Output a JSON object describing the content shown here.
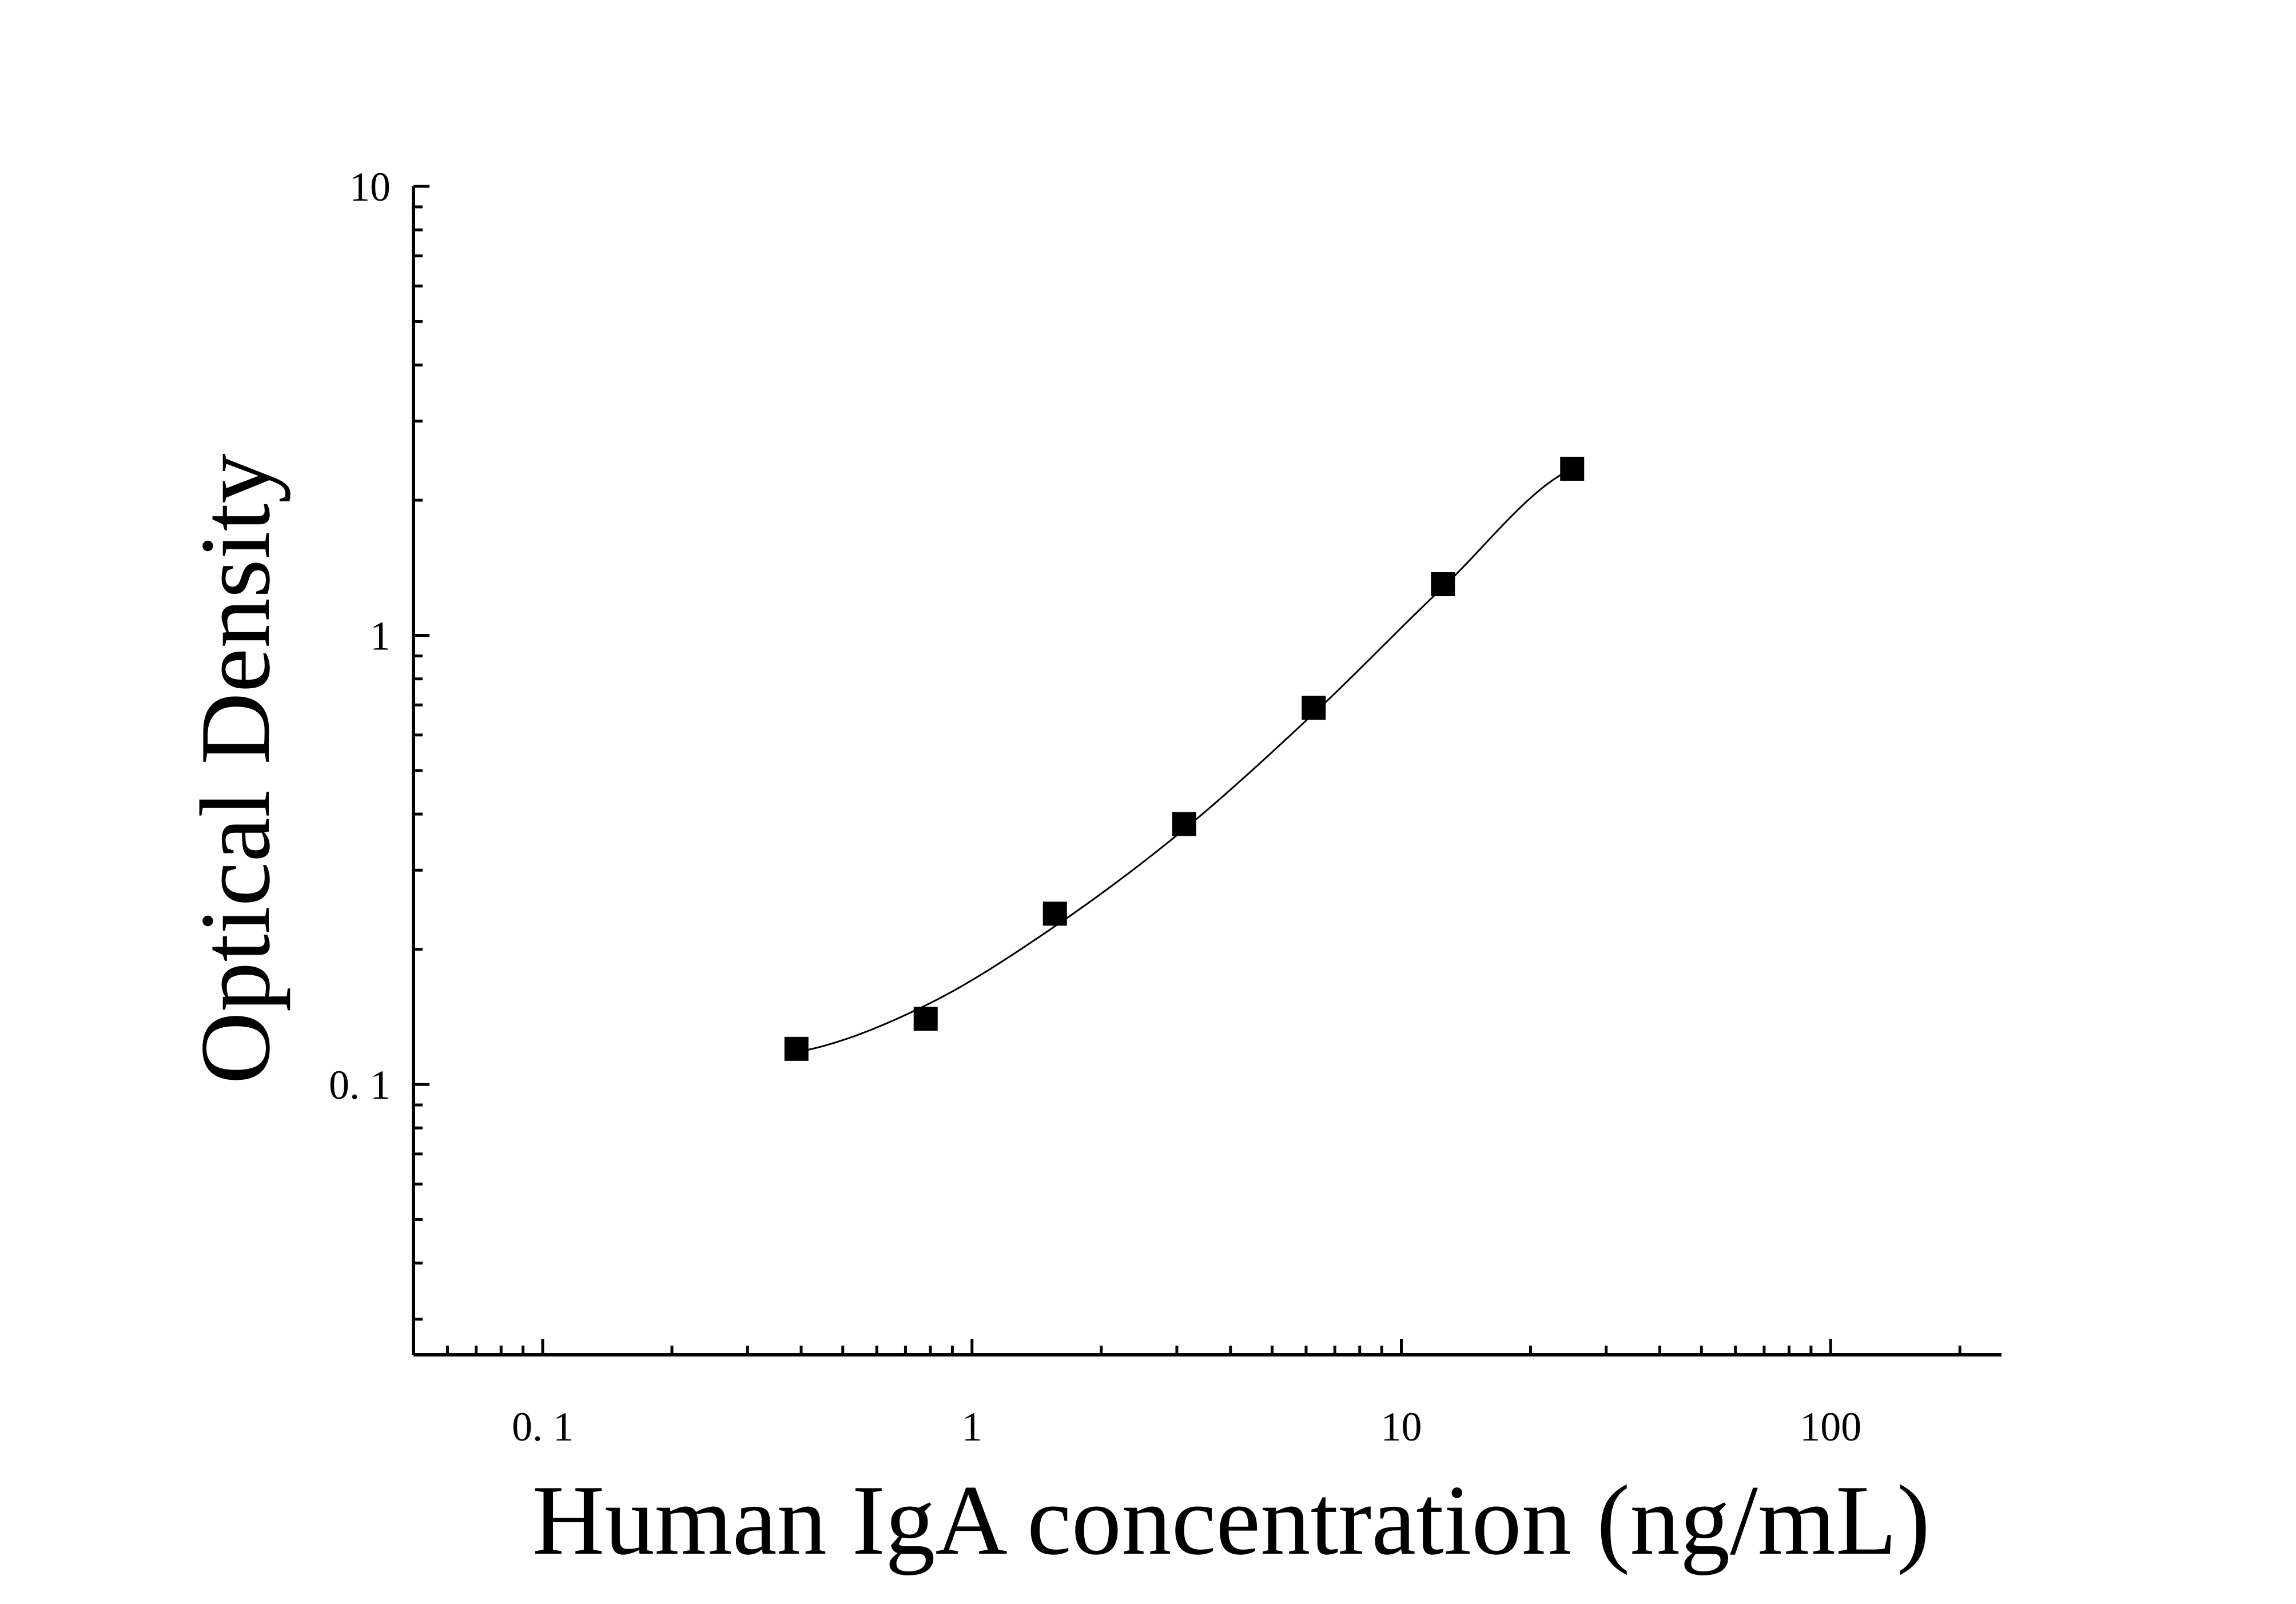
{
  "chart_data": {
    "type": "scatter",
    "title": "",
    "xlabel": "Human IgA concentration (ng/mL)",
    "ylabel": "Optical Density",
    "x_scale": "log",
    "y_scale": "log",
    "xlim": [
      0.05,
      250
    ],
    "ylim": [
      0.025,
      10
    ],
    "x_tick_labels": [
      {
        "value": 0.1,
        "label": "0. 1"
      },
      {
        "value": 1,
        "label": "1"
      },
      {
        "value": 10,
        "label": "10"
      },
      {
        "value": 100,
        "label": "100"
      }
    ],
    "y_tick_labels": [
      {
        "value": 0.1,
        "label": "0. 1"
      },
      {
        "value": 1,
        "label": "1"
      },
      {
        "value": 10,
        "label": "10"
      }
    ],
    "grid": false,
    "legend": "none",
    "colors": {
      "marker": "#000000",
      "curve": "#000000",
      "axis": "#000000"
    },
    "series": [
      {
        "marker": "square",
        "x": [
          0.39,
          0.78,
          1.56,
          3.12,
          6.25,
          12.5,
          25
        ],
        "y": [
          0.12,
          0.14,
          0.24,
          0.38,
          0.69,
          1.3,
          2.35
        ]
      }
    ],
    "fit_curve": {
      "x": [
        0.39,
        0.78,
        1.56,
        3.12,
        6.25,
        12.5,
        25
      ],
      "y": [
        0.118,
        0.15,
        0.225,
        0.37,
        0.67,
        1.28,
        2.35
      ]
    }
  }
}
